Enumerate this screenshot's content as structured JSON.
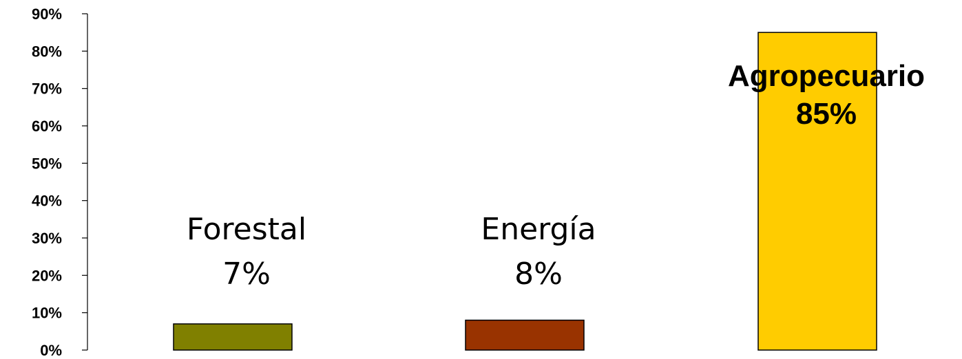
{
  "chart_data": {
    "type": "bar",
    "categories": [
      "Forestal",
      "Energía",
      "Agropecuario"
    ],
    "values": [
      7,
      8,
      85
    ],
    "value_labels": [
      "7%",
      "8%",
      "85%"
    ],
    "colors": [
      "#808000",
      "#993300",
      "#FFCC00"
    ],
    "yticks": [
      "0%",
      "10%",
      "20%",
      "30%",
      "40%",
      "50%",
      "60%",
      "70%",
      "80%",
      "90%"
    ],
    "ylim": [
      0,
      90
    ],
    "label_bold": [
      false,
      false,
      true
    ],
    "grid": false,
    "legend": "none",
    "title": "",
    "xlabel": "",
    "ylabel": ""
  }
}
